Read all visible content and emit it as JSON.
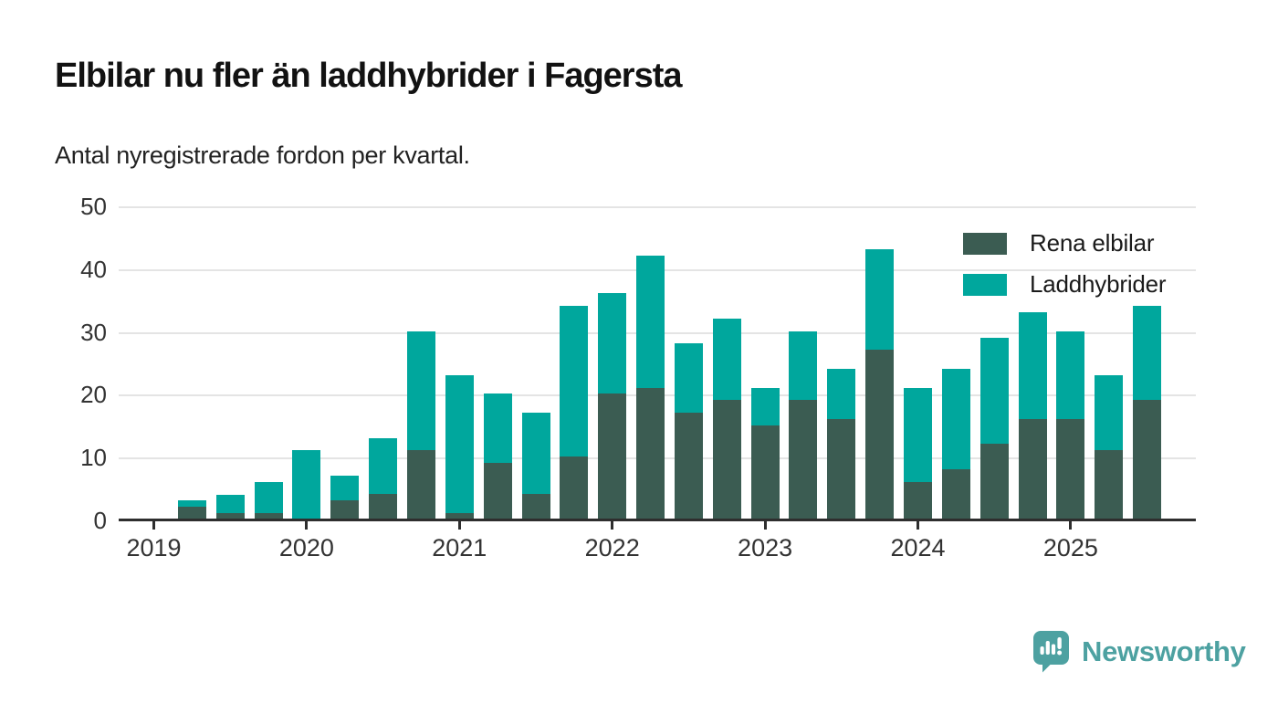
{
  "header": {
    "title": "Elbilar nu fler än laddhybrider i Fagersta",
    "subtitle": "Antal nyregistrerade fordon per kvartal."
  },
  "chart_data": {
    "type": "bar",
    "stacked": true,
    "title": "Elbilar nu fler än laddhybrider i Fagersta",
    "subtitle": "Antal nyregistrerade fordon per kvartal.",
    "xlabel": "",
    "ylabel": "",
    "categories": [
      "2019Q2",
      "2019Q3",
      "2019Q4",
      "2020Q1",
      "2020Q2",
      "2020Q3",
      "2020Q4",
      "2021Q1",
      "2021Q2",
      "2021Q3",
      "2021Q4",
      "2022Q1",
      "2022Q2",
      "2022Q3",
      "2022Q4",
      "2023Q1",
      "2023Q2",
      "2023Q3",
      "2023Q4",
      "2024Q1",
      "2024Q2",
      "2024Q3",
      "2024Q4",
      "2025Q1",
      "2025Q2",
      "2025Q3"
    ],
    "series": [
      {
        "name": "Rena elbilar",
        "color": "#3b5c52",
        "values": [
          2,
          1,
          1,
          0,
          3,
          4,
          11,
          1,
          9,
          4,
          10,
          20,
          21,
          17,
          19,
          15,
          19,
          16,
          27,
          6,
          8,
          12,
          16,
          16,
          11,
          19
        ]
      },
      {
        "name": "Laddhybrider",
        "color": "#00a79d",
        "values": [
          1,
          3,
          5,
          11,
          4,
          9,
          19,
          22,
          11,
          13,
          24,
          16,
          21,
          11,
          13,
          6,
          11,
          8,
          16,
          15,
          16,
          17,
          17,
          14,
          12,
          15
        ]
      }
    ],
    "totals": [
      3,
      4,
      6,
      11,
      7,
      13,
      30,
      23,
      20,
      17,
      34,
      36,
      42,
      28,
      32,
      21,
      30,
      24,
      43,
      21,
      24,
      29,
      33,
      30,
      23,
      34
    ],
    "ylim": [
      0,
      50
    ],
    "yticks": [
      0,
      10,
      20,
      30,
      40,
      50
    ],
    "xticks": [
      {
        "label": "2019",
        "quarter_index": 0
      },
      {
        "label": "2020",
        "quarter_index": 4
      },
      {
        "label": "2021",
        "quarter_index": 8
      },
      {
        "label": "2022",
        "quarter_index": 12
      },
      {
        "label": "2023",
        "quarter_index": 16
      },
      {
        "label": "2024",
        "quarter_index": 20
      },
      {
        "label": "2025",
        "quarter_index": 24
      }
    ],
    "start_quarter_index": 1,
    "grid": "horizontal",
    "grid_color": "#e4e4e4",
    "axis_color": "#2e2e2e",
    "legend_position": "top-right"
  },
  "footer": {
    "brand": "Newsworthy",
    "brand_color": "#4da1a1",
    "brand_icon": "speech-bubble-bar-chart-icon"
  }
}
